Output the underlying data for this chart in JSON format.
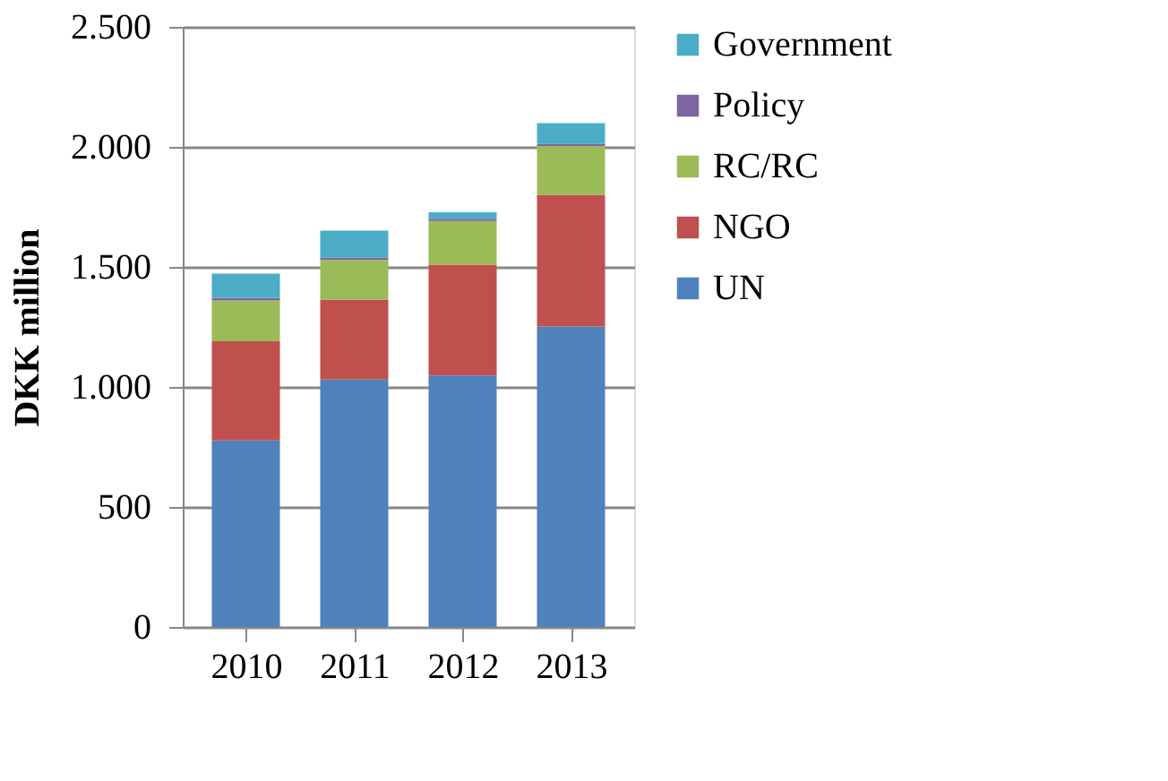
{
  "chart_data": {
    "type": "bar",
    "stacked": true,
    "ylabel": "DKK million",
    "categories": [
      "2010",
      "2011",
      "2012",
      "2013"
    ],
    "series": [
      {
        "name": "UN",
        "color": "#4f81bd",
        "values": [
          777,
          1031,
          1048,
          1252
        ]
      },
      {
        "name": "NGO",
        "color": "#c0504d",
        "values": [
          413,
          333,
          461,
          548
        ]
      },
      {
        "name": "RC/RC",
        "color": "#9bbb59",
        "values": [
          170,
          165,
          182,
          204
        ]
      },
      {
        "name": "Policy",
        "color": "#8064a2",
        "values": [
          10,
          10,
          10,
          8
        ]
      },
      {
        "name": "Government",
        "color": "#4bacc6",
        "values": [
          102,
          112,
          27,
          87
        ]
      }
    ],
    "ylim": [
      0,
      2500
    ],
    "yticks": [
      0,
      500,
      {
        "value": 1000,
        "label": "1.000"
      },
      {
        "value": 1500,
        "label": "1.500"
      },
      {
        "value": 2000,
        "label": "2.000"
      },
      {
        "value": 2500,
        "label": "2.500"
      }
    ],
    "grid": "y",
    "legend": "right"
  }
}
